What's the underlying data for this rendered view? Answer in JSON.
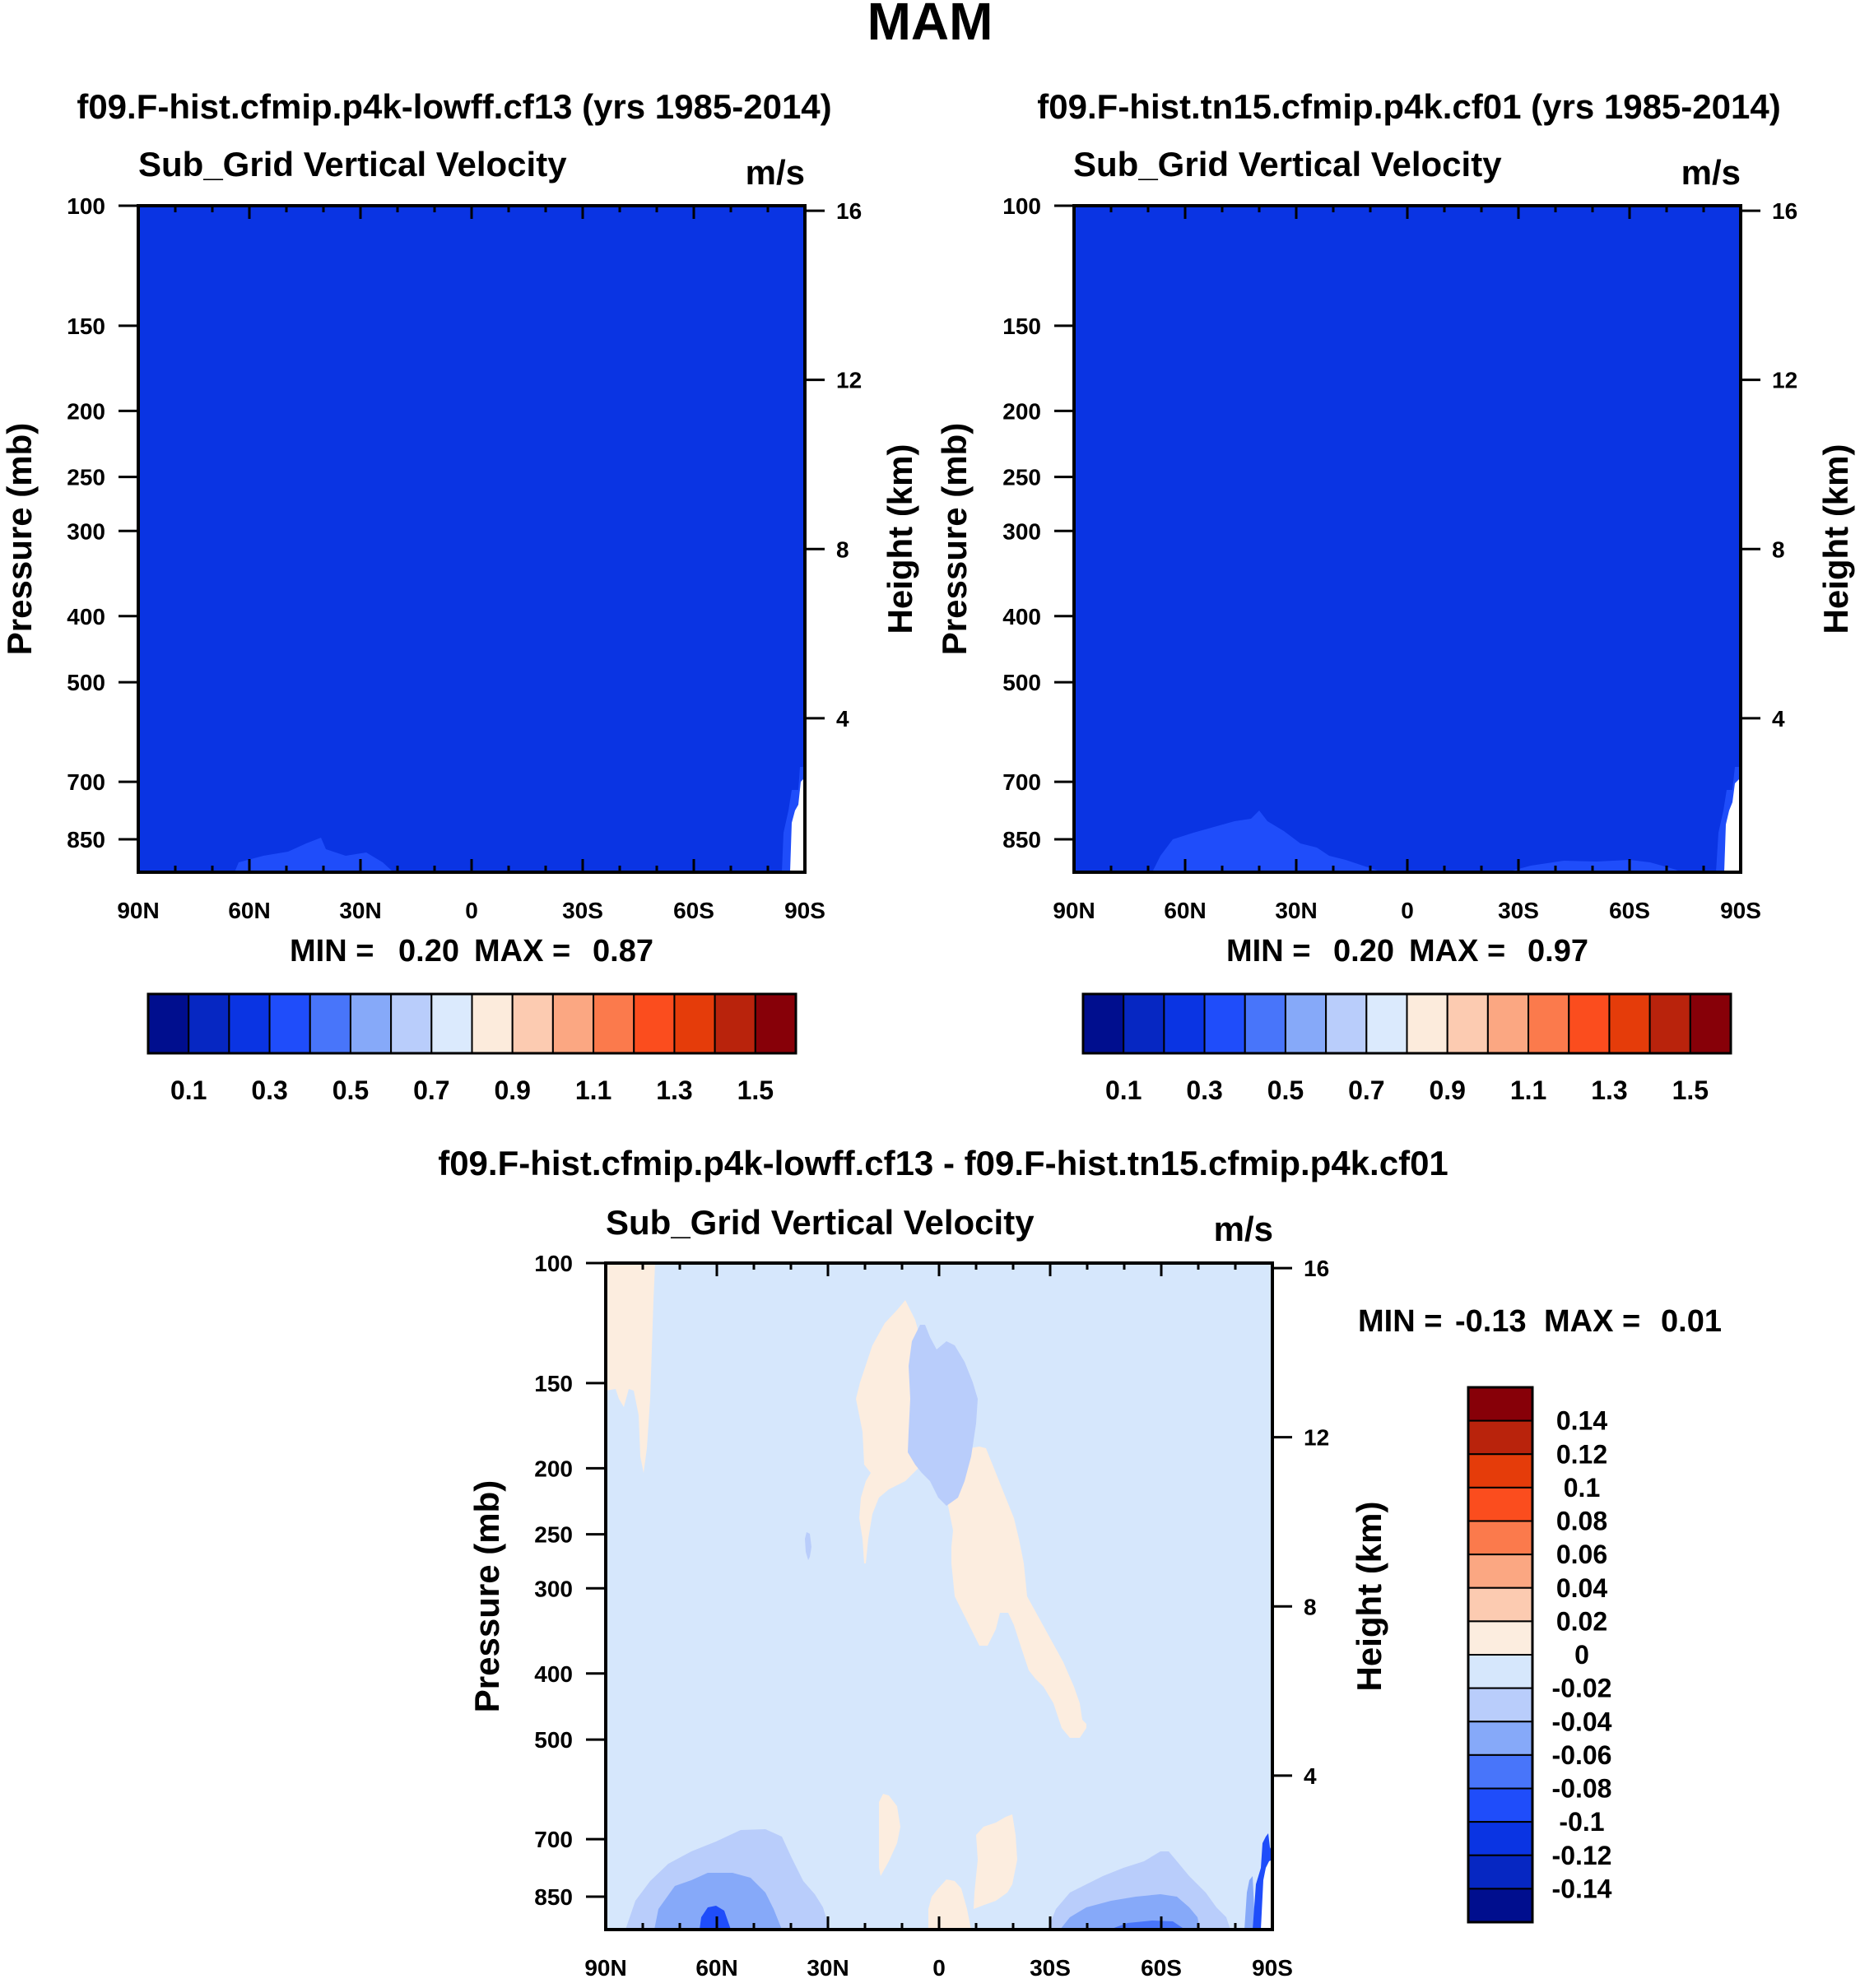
{
  "page": {
    "title": "MAM"
  },
  "colors": {
    "seq": [
      "#000e8e",
      "#0627c2",
      "#0a34e3",
      "#1f4dfa",
      "#4875fa",
      "#86a9f9",
      "#b9cdfb",
      "#dbeafd",
      "#fcebdc",
      "#fccbb1",
      "#fba782",
      "#fb7a4c",
      "#fb4d1e",
      "#e53c0a",
      "#b9230c",
      "#870008"
    ],
    "diff": [
      "#000e8e",
      "#0627c2",
      "#0a34e3",
      "#1f4dfa",
      "#4875fa",
      "#86a9f9",
      "#b9cdfb",
      "#d6e7fc",
      "#fceddf",
      "#fccbb1",
      "#fba782",
      "#fb7a4c",
      "#fb4d1e",
      "#e53c0a",
      "#b9230c",
      "#870008"
    ]
  },
  "chart_data": [
    {
      "type": "heatmap",
      "title": "f09.F-hist.cfmip.p4k-lowff.cf13 (yrs 1985-2014)",
      "subtitle": "Sub_Grid Vertical Velocity",
      "units": "m/s",
      "ylabel": "Pressure (mb)",
      "y2label": "Height (km)",
      "x_ticks": [
        "90N",
        "60N",
        "30N",
        "0",
        "30S",
        "60S",
        "90S"
      ],
      "y_ticks": [
        "100",
        "150",
        "200",
        "250",
        "300",
        "400",
        "500",
        "700",
        "850"
      ],
      "y2_ticks": [
        "16",
        "12",
        "8",
        "4"
      ],
      "stats": {
        "min_label": "MIN =",
        "min": "0.20",
        "max_label": "MAX =",
        "max": "0.87"
      },
      "colorbar_labels": [
        "0.1",
        "0.3",
        "0.5",
        "0.7",
        "0.9",
        "1.1",
        "1.3",
        "1.5"
      ],
      "field": "mostly 0.2-0.3 m/s; 0.3-0.4 near surface 30N-60N; >0.8 near surface at 90S"
    },
    {
      "type": "heatmap",
      "title": "f09.F-hist.tn15.cfmip.p4k.cf01 (yrs 1985-2014)",
      "subtitle": "Sub_Grid Vertical Velocity",
      "units": "m/s",
      "ylabel": "Pressure (mb)",
      "y2label": "Height (km)",
      "x_ticks": [
        "90N",
        "60N",
        "30N",
        "0",
        "30S",
        "60S",
        "90S"
      ],
      "y_ticks": [
        "100",
        "150",
        "200",
        "250",
        "300",
        "400",
        "500",
        "700",
        "850"
      ],
      "y2_ticks": [
        "16",
        "12",
        "8",
        "4"
      ],
      "stats": {
        "min_label": "MIN =",
        "min": "0.20",
        "max_label": "MAX =",
        "max": "0.97"
      },
      "colorbar_labels": [
        "0.1",
        "0.3",
        "0.5",
        "0.7",
        "0.9",
        "1.1",
        "1.3",
        "1.5"
      ],
      "field": "mostly 0.2-0.3 m/s; 0.3-0.4 near surface 30N-70N and 30S-60S; >0.8 near surface at 90S"
    },
    {
      "type": "heatmap",
      "title": "f09.F-hist.cfmip.p4k-lowff.cf13 - f09.F-hist.tn15.cfmip.p4k.cf01",
      "subtitle": "Sub_Grid Vertical Velocity",
      "units": "m/s",
      "ylabel": "Pressure (mb)",
      "y2label": "Height (km)",
      "x_ticks": [
        "90N",
        "60N",
        "30N",
        "0",
        "30S",
        "60S",
        "90S"
      ],
      "y_ticks": [
        "100",
        "150",
        "200",
        "250",
        "300",
        "400",
        "500",
        "700",
        "850"
      ],
      "y2_ticks": [
        "16",
        "12",
        "8",
        "4"
      ],
      "stats": {
        "min_label": "MIN =",
        "min": "-0.13",
        "max_label": "MAX =",
        "max": "0.01"
      },
      "colorbar_labels": [
        "0.14",
        "0.12",
        "0.1",
        "0.08",
        "0.06",
        "0.04",
        "0.02",
        "0",
        "-0.02",
        "-0.04",
        "-0.06",
        "-0.08",
        "-0.1",
        "-0.12",
        "-0.14"
      ],
      "field": "mostly -0.02-0; 0-0.02 patches near 90N aloft and 5S-30S mid levels; -0.02 to -0.08 near surface 30N-75N and 35S-75S; -0.02 to -0.04 at 200-150 mb near 0-10S"
    }
  ]
}
